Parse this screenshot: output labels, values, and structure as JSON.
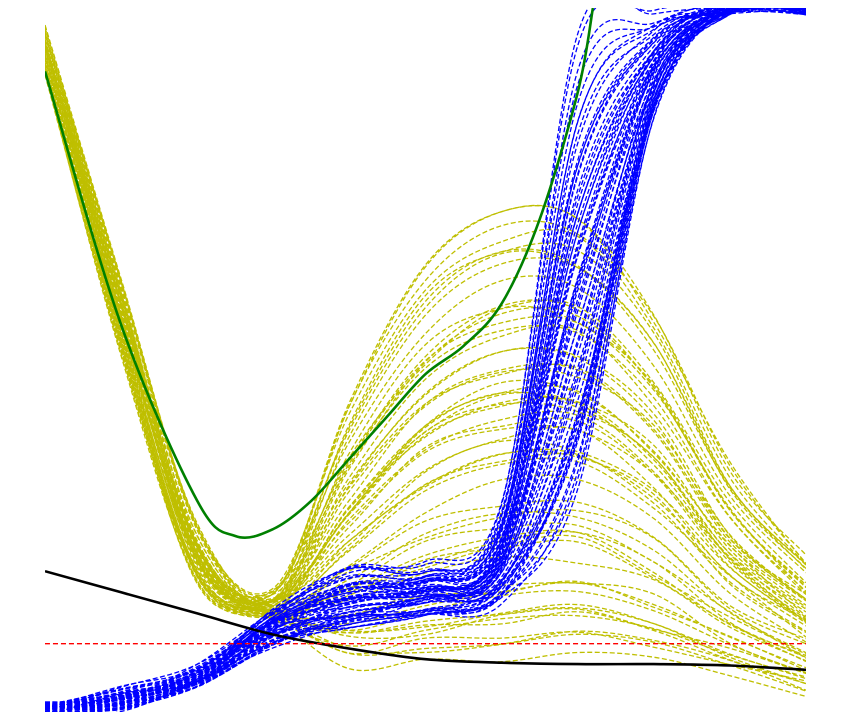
{
  "chart_data": {
    "type": "line",
    "title": "",
    "xlabel": "",
    "ylabel": "",
    "xlim": [
      0,
      1
    ],
    "ylim": [
      0,
      1
    ],
    "axes_visible": false,
    "grid": false,
    "legend": "none",
    "colors": {
      "yellow_family": "#bfbf00",
      "blue_family": "#0000ff",
      "green_curve": "#008000",
      "black_curve": "#000000",
      "red_line": "#ff0000"
    },
    "families": [
      {
        "color": "#bfbf00",
        "style": "dashed",
        "count": 60,
        "x": [
          0.0,
          0.1,
          0.2,
          0.3,
          0.4,
          0.5,
          0.6,
          0.7,
          0.8,
          0.9,
          1.0
        ],
        "y_base": [
          0.93,
          0.56,
          0.22,
          0.15,
          0.18,
          0.21,
          0.26,
          0.3,
          0.27,
          0.18,
          0.04
        ],
        "y_low": [
          0.9,
          0.5,
          0.18,
          0.13,
          0.05,
          0.04,
          0.04,
          0.05,
          0.05,
          0.04,
          0.02
        ],
        "y_high": [
          0.97,
          0.62,
          0.26,
          0.17,
          0.44,
          0.63,
          0.71,
          0.7,
          0.57,
          0.35,
          0.22
        ]
      },
      {
        "color": "#0000ff",
        "style": "dashed",
        "count": 60,
        "x": [
          0.0,
          0.1,
          0.2,
          0.3,
          0.4,
          0.5,
          0.6,
          0.7,
          0.8,
          0.9,
          1.0
        ],
        "y_base": [
          0.0,
          0.02,
          0.05,
          0.12,
          0.17,
          0.19,
          0.25,
          0.75,
          1.0,
          1.0,
          1.0
        ],
        "y_low": [
          0.0,
          0.01,
          0.04,
          0.1,
          0.12,
          0.14,
          0.16,
          0.32,
          0.85,
          1.0,
          1.0
        ],
        "y_high": [
          0.01,
          0.03,
          0.06,
          0.15,
          0.21,
          0.21,
          0.3,
          1.0,
          1.0,
          1.0,
          1.0
        ]
      }
    ],
    "series": [
      {
        "color": "#008000",
        "style": "solid",
        "x": [
          0.0,
          0.1,
          0.2,
          0.25,
          0.3,
          0.35,
          0.4,
          0.45,
          0.5,
          0.55,
          0.6,
          0.65,
          0.7,
          0.72
        ],
        "y": [
          0.91,
          0.55,
          0.3,
          0.25,
          0.26,
          0.3,
          0.36,
          0.42,
          0.48,
          0.52,
          0.58,
          0.7,
          0.88,
          1.0
        ]
      },
      {
        "color": "#000000",
        "style": "solid",
        "x": [
          0.0,
          0.1,
          0.2,
          0.3,
          0.4,
          0.5,
          0.6,
          0.7,
          0.8,
          0.9,
          1.0
        ],
        "y": [
          0.2,
          0.17,
          0.14,
          0.11,
          0.09,
          0.075,
          0.07,
          0.068,
          0.068,
          0.066,
          0.06
        ]
      },
      {
        "color": "#ff0000",
        "style": "dashed",
        "x": [
          0.0,
          1.0
        ],
        "y": [
          0.097,
          0.097
        ]
      }
    ]
  }
}
